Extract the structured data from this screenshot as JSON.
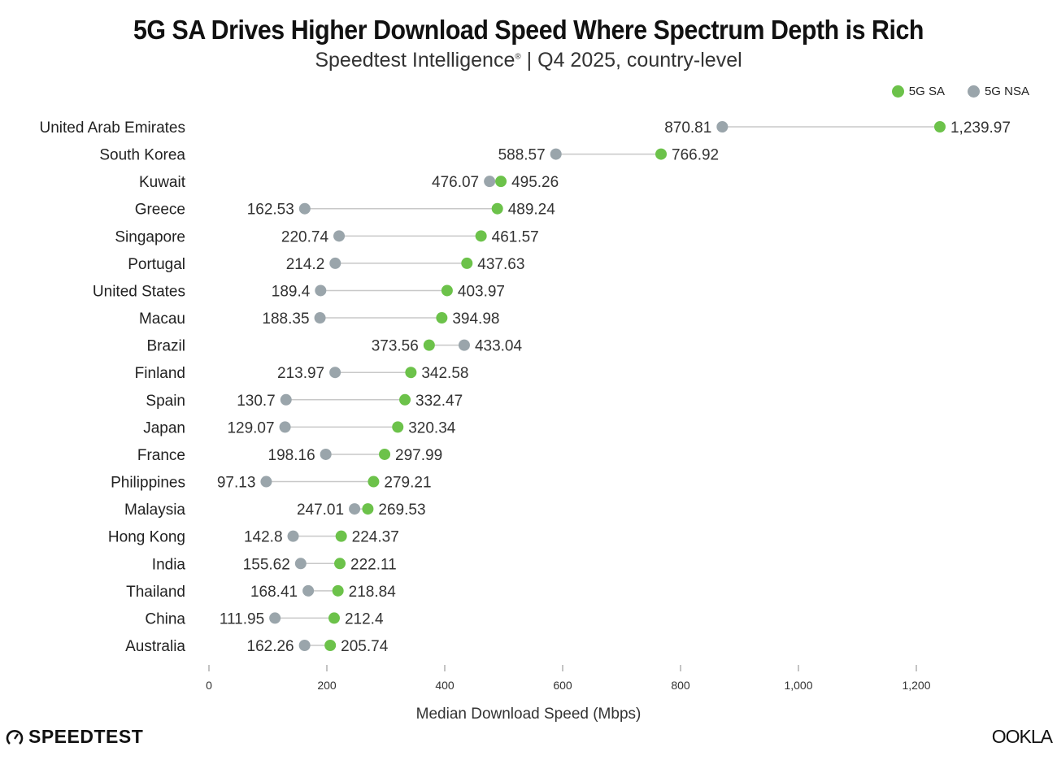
{
  "colors": {
    "sa": "#6cc24a",
    "nsa": "#9aa5ab",
    "line": "#c8c8c8"
  },
  "logos": {
    "left": "SPEEDTEST",
    "right": "OOKLA"
  },
  "chart_data": {
    "type": "dumbbell",
    "title": "5G SA Drives Higher Download Speed Where Spectrum Depth is Rich",
    "subtitle_brand": "Speedtest Intelligence",
    "subtitle_mark": "®",
    "subtitle_rest": " | Q4 2025, country-level",
    "xlabel": "Median Download Speed (Mbps)",
    "xlim": [
      0,
      1300
    ],
    "xticks": [
      0,
      200,
      400,
      600,
      800,
      1000,
      1200
    ],
    "xtick_labels": [
      "0",
      "200",
      "400",
      "600",
      "800",
      "1,000",
      "1,200"
    ],
    "legend": [
      {
        "name": "5G SA"
      },
      {
        "name": "5G NSA"
      }
    ],
    "legend_position": "top-right",
    "grid": false,
    "categories": [
      "United Arab Emirates",
      "South Korea",
      "Kuwait",
      "Greece",
      "Singapore",
      "Portugal",
      "United States",
      "Macau",
      "Brazil",
      "Finland",
      "Spain",
      "Japan",
      "France",
      "Philippines",
      "Malaysia",
      "Hong Kong",
      "India",
      "Thailand",
      "China",
      "Australia"
    ],
    "series": [
      {
        "name": "5G SA",
        "values": [
          1239.97,
          766.92,
          495.26,
          489.24,
          461.57,
          437.63,
          403.97,
          394.98,
          373.56,
          342.58,
          332.47,
          320.34,
          297.99,
          279.21,
          269.53,
          224.37,
          222.11,
          218.84,
          212.4,
          205.74
        ],
        "labels": [
          "1,239.97",
          "766.92",
          "495.26",
          "489.24",
          "461.57",
          "437.63",
          "403.97",
          "394.98",
          "373.56",
          "342.58",
          "332.47",
          "320.34",
          "297.99",
          "279.21",
          "269.53",
          "224.37",
          "222.11",
          "218.84",
          "212.4",
          "205.74"
        ]
      },
      {
        "name": "5G NSA",
        "values": [
          870.81,
          588.57,
          476.07,
          162.53,
          220.74,
          214.2,
          189.4,
          188.35,
          433.04,
          213.97,
          130.7,
          129.07,
          198.16,
          97.13,
          247.01,
          142.8,
          155.62,
          168.41,
          111.95,
          162.26
        ],
        "labels": [
          "870.81",
          "588.57",
          "476.07",
          "162.53",
          "220.74",
          "214.2",
          "189.4",
          "188.35",
          "433.04",
          "213.97",
          "130.7",
          "129.07",
          "198.16",
          "97.13",
          "247.01",
          "142.8",
          "155.62",
          "168.41",
          "111.95",
          "162.26"
        ]
      }
    ]
  }
}
